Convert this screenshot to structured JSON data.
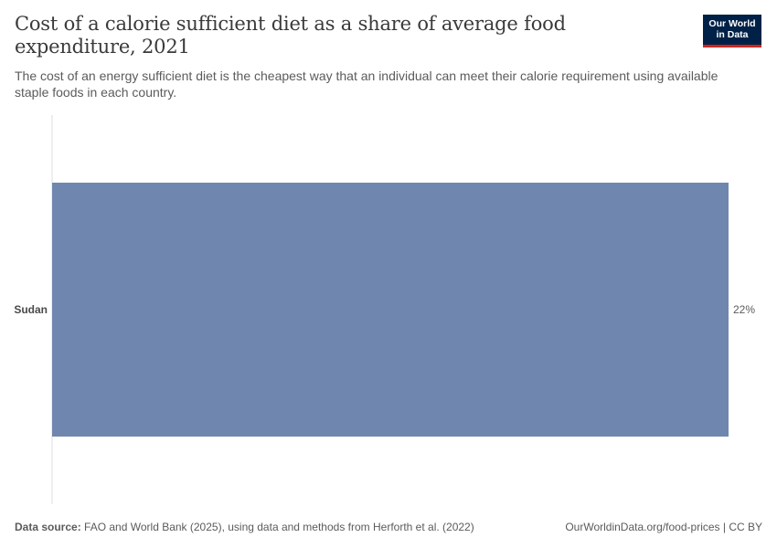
{
  "header": {
    "title": "Cost of a calorie sufficient diet as a share of average food expenditure, 2021",
    "subtitle": "The cost of an energy sufficient diet is the cheapest way that an individual can meet their calorie requirement using available staple foods in each country."
  },
  "logo": {
    "line1": "Our World",
    "line2": "in Data"
  },
  "footer": {
    "source_label": "Data source:",
    "source_text": "FAO and World Bank (2025), using data and methods from Herforth et al. (2022)",
    "right_text": "OurWorldinData.org/food-prices | CC BY"
  },
  "colors": {
    "bar": "#6f87ae",
    "axis": "#dddddd",
    "label": "#5b5b5b"
  },
  "chart_data": {
    "type": "bar",
    "orientation": "horizontal",
    "categories": [
      "Sudan"
    ],
    "values": [
      22
    ],
    "value_labels": [
      "22%"
    ],
    "unit": "%",
    "xlim": [
      0,
      22
    ]
  }
}
